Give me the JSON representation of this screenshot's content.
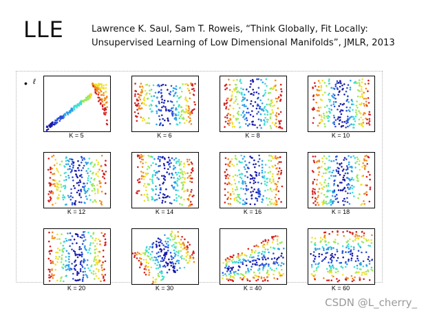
{
  "slide": {
    "title": "LLE",
    "citation_line1": "Lawrence K. Saul, Sam T. Roweis, “Think Globally, Fit Locally:",
    "citation_line2": "Unsupervised Learning of Low Dimensional Manifolds”, JMLR, 2013",
    "bullet": "•",
    "bullet_text_fragment": "ℓ"
  },
  "figure": {
    "colormap": [
      "#1a1aa8",
      "#2a4fd8",
      "#2fa0e8",
      "#3fe0d0",
      "#9be85a",
      "#f0e030",
      "#f08a20",
      "#d42020"
    ],
    "panels": [
      {
        "label": "K = 5",
        "style": "curve"
      },
      {
        "label": "K = 6",
        "style": "warped"
      },
      {
        "label": "K = 8",
        "style": "stripes"
      },
      {
        "label": "K = 10",
        "style": "stripes"
      },
      {
        "label": "K = 12",
        "style": "stripes"
      },
      {
        "label": "K = 14",
        "style": "tilt"
      },
      {
        "label": "K = 16",
        "style": "stripes"
      },
      {
        "label": "K = 18",
        "style": "stripes"
      },
      {
        "label": "K = 20",
        "style": "stripes"
      },
      {
        "label": "K = 30",
        "style": "rotated"
      },
      {
        "label": "K = 40",
        "style": "wedge"
      },
      {
        "label": "K = 60",
        "style": "horizontal"
      }
    ]
  },
  "watermark": "CSDN @L_cherry_"
}
